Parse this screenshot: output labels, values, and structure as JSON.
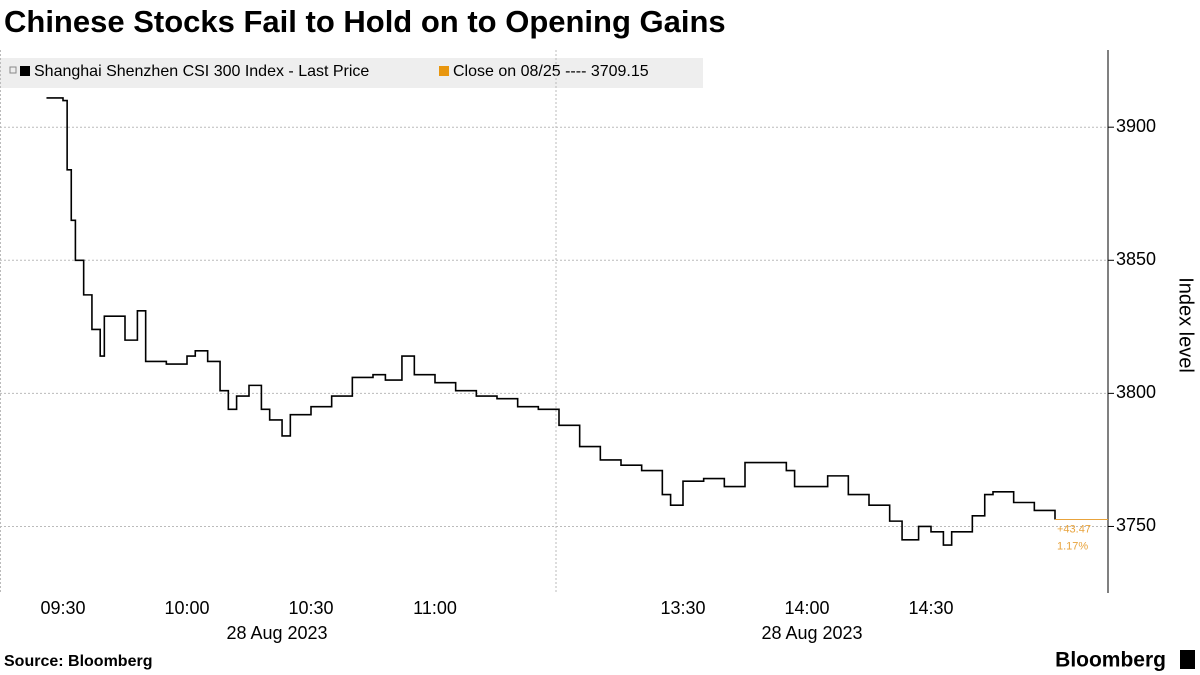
{
  "chart_data": {
    "type": "line",
    "title": "Chinese Stocks Fail to Hold on to Opening Gains",
    "y_label": "Index level",
    "source": "Source: Bloomberg",
    "brand": "Bloomberg",
    "close_label": "Close on 08/25 ---- 3709.15",
    "annotations": [
      "+43.47",
      "1.17%"
    ],
    "date_labels": [
      "28 Aug 2023",
      "28 Aug 2023"
    ],
    "x": [
      "09:26",
      "09:30",
      "09:31",
      "09:32",
      "09:33",
      "09:35",
      "09:37",
      "09:39",
      "09:40",
      "09:45",
      "09:48",
      "09:50",
      "09:55",
      "10:00",
      "10:02",
      "10:05",
      "10:08",
      "10:10",
      "10:12",
      "10:15",
      "10:18",
      "10:20",
      "10:23",
      "10:25",
      "10:30",
      "10:35",
      "10:40",
      "10:45",
      "10:48",
      "10:52",
      "10:55",
      "11:00",
      "11:05",
      "11:10",
      "11:15",
      "11:20",
      "11:25",
      "11:29",
      "13:00",
      "13:05",
      "13:10",
      "13:15",
      "13:20",
      "13:25",
      "13:27",
      "13:30",
      "13:35",
      "13:40",
      "13:45",
      "13:50",
      "13:55",
      "13:57",
      "14:00",
      "14:05",
      "14:10",
      "14:15",
      "14:20",
      "14:23",
      "14:27",
      "14:30",
      "14:33",
      "14:35",
      "14:40",
      "14:43",
      "14:45",
      "14:50",
      "14:55",
      "15:00"
    ],
    "series": [
      {
        "name": "Shanghai Shenzhen CSI 300 Index - Last Price",
        "color": "#000000",
        "values": [
          3911,
          3910,
          3884,
          3865,
          3850,
          3837,
          3824,
          3814,
          3829,
          3820,
          3831,
          3812,
          3811,
          3814,
          3816,
          3812,
          3801,
          3794,
          3799,
          3803,
          3794,
          3790,
          3784,
          3792,
          3795,
          3799,
          3806,
          3807,
          3805,
          3814,
          3807,
          3804,
          3801,
          3799,
          3798,
          3795,
          3794,
          3794,
          3788,
          3780,
          3775,
          3773,
          3771,
          3762,
          3758,
          3767,
          3768,
          3765,
          3774,
          3774,
          3771,
          3765,
          3765,
          3769,
          3762,
          3758,
          3752,
          3745,
          3750,
          3748,
          3743,
          3748,
          3754,
          3762,
          3763,
          3759,
          3756,
          3752.62
        ]
      }
    ],
    "annotation_color": "#e8a33c",
    "xticks": [
      "09:30",
      "10:00",
      "10:30",
      "11:00",
      "13:30",
      "14:00",
      "14:30"
    ],
    "ylim": [
      3725,
      3929
    ],
    "yticks": [
      3750,
      3800,
      3850,
      3900
    ],
    "grid": true
  }
}
